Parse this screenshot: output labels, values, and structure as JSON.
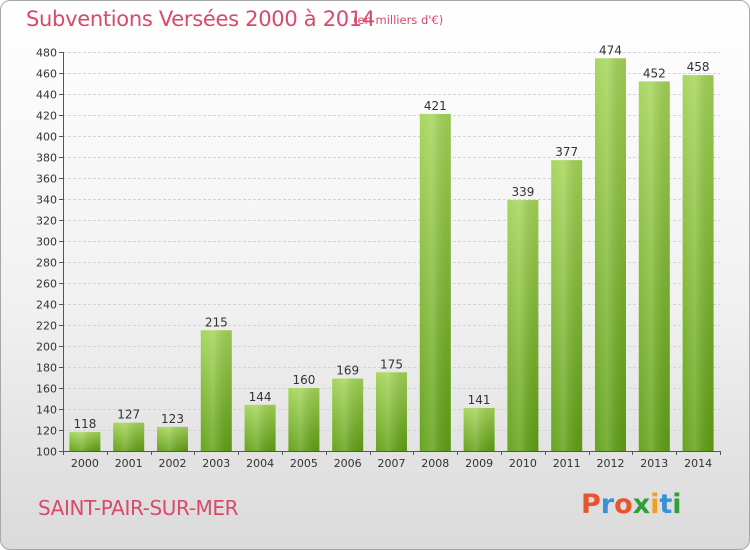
{
  "title": "Subventions Versées 2000 à 2014",
  "subtitle": "(en milliers d'€)",
  "city": "SAINT-PAIR-SUR-MER",
  "logo": {
    "text": "Proxiti",
    "colors": [
      "#e8542d",
      "#3a8fd9",
      "#e8542d",
      "#2f9e3b",
      "#f0a020",
      "#3a8fd9",
      "#2f9e3b"
    ]
  },
  "colors": {
    "bar_top": "#a4d457",
    "bar_bottom": "#5f9f13",
    "accent": "#d84a6a"
  },
  "chart_data": {
    "type": "bar",
    "title": "Subventions Versées 2000 à 2014",
    "subtitle": "(en milliers d'€)",
    "categories": [
      "2000",
      "2001",
      "2002",
      "2003",
      "2004",
      "2005",
      "2006",
      "2007",
      "2008",
      "2009",
      "2010",
      "2011",
      "2012",
      "2013",
      "2014"
    ],
    "values": [
      118,
      127,
      123,
      215,
      144,
      160,
      169,
      175,
      421,
      141,
      339,
      377,
      474,
      452,
      458
    ],
    "data_labels": [
      "118",
      "127",
      "123",
      "215",
      "144",
      "160",
      "169",
      "175",
      "421",
      "141",
      "339",
      "377",
      "474",
      "452",
      "458"
    ],
    "ylim": [
      100,
      480
    ],
    "yticks": [
      100,
      120,
      140,
      160,
      180,
      200,
      220,
      240,
      260,
      280,
      300,
      320,
      340,
      360,
      380,
      400,
      420,
      440,
      460,
      480
    ],
    "ytick_labels": [
      "100",
      "120",
      "140",
      "160",
      "180",
      "200",
      "220",
      "240",
      "260",
      "280",
      "300",
      "320",
      "340",
      "360",
      "380",
      "400",
      "420",
      "440",
      "460",
      "480"
    ],
    "grid": true,
    "legend": "none"
  }
}
